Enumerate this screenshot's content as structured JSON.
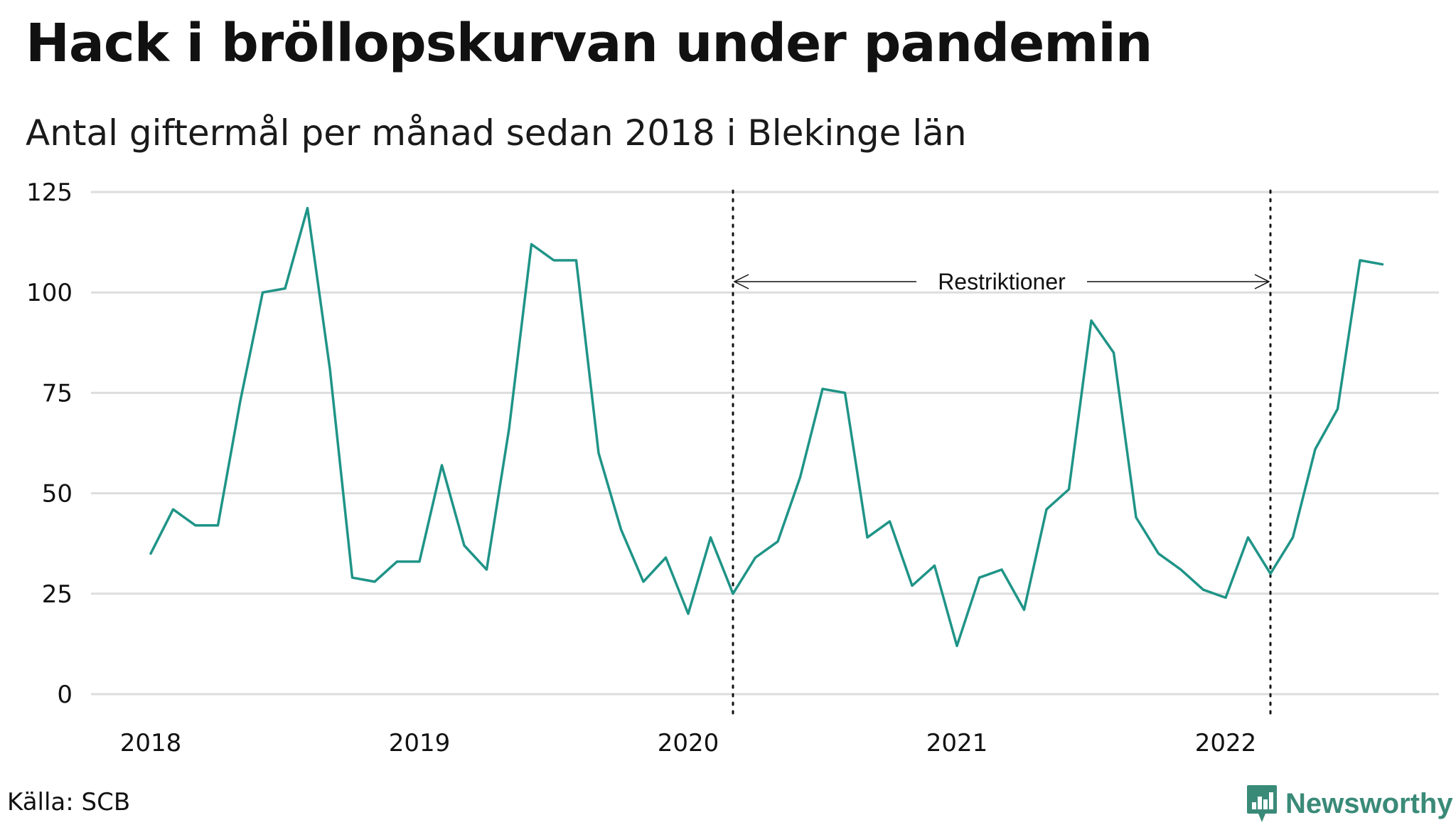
{
  "title": "Hack i bröllopskurvan under pandemin",
  "subtitle": "Antal giftermål per månad sedan 2018 i Blekinge län",
  "source": "Källa: SCB",
  "brand": {
    "name": "Newsworthy",
    "color": "#3a8a78",
    "icon": "newsworthy-logo-icon"
  },
  "colors": {
    "line": "#1f9487",
    "grid": "#dddddd"
  },
  "annotation": {
    "label": "Restriktioner",
    "start": "2020-03",
    "end": "2022-03"
  },
  "chart_data": {
    "type": "line",
    "title": "Hack i bröllopskurvan under pandemin",
    "subtitle": "Antal giftermål per månad sedan 2018 i Blekinge län",
    "xlabel": "",
    "ylabel": "",
    "ylim": [
      0,
      125
    ],
    "yticks": [
      0,
      25,
      50,
      75,
      100,
      125
    ],
    "xticks": [
      "2018",
      "2019",
      "2020",
      "2021",
      "2022"
    ],
    "grid": "horizontal",
    "x": [
      "2018-01",
      "2018-02",
      "2018-03",
      "2018-04",
      "2018-05",
      "2018-06",
      "2018-07",
      "2018-08",
      "2018-09",
      "2018-10",
      "2018-11",
      "2018-12",
      "2019-01",
      "2019-02",
      "2019-03",
      "2019-04",
      "2019-05",
      "2019-06",
      "2019-07",
      "2019-08",
      "2019-09",
      "2019-10",
      "2019-11",
      "2019-12",
      "2020-01",
      "2020-02",
      "2020-03",
      "2020-04",
      "2020-05",
      "2020-06",
      "2020-07",
      "2020-08",
      "2020-09",
      "2020-10",
      "2020-11",
      "2020-12",
      "2021-01",
      "2021-02",
      "2021-03",
      "2021-04",
      "2021-05",
      "2021-06",
      "2021-07",
      "2021-08",
      "2021-09",
      "2021-10",
      "2021-11",
      "2021-12",
      "2022-01",
      "2022-02",
      "2022-03",
      "2022-04",
      "2022-05",
      "2022-06",
      "2022-07",
      "2022-08"
    ],
    "values": [
      35,
      46,
      42,
      42,
      73,
      100,
      101,
      121,
      81,
      29,
      28,
      33,
      33,
      57,
      37,
      31,
      66,
      112,
      108,
      108,
      60,
      41,
      28,
      34,
      20,
      39,
      25,
      34,
      38,
      54,
      76,
      75,
      39,
      43,
      27,
      32,
      12,
      29,
      31,
      21,
      46,
      51,
      93,
      85,
      44,
      35,
      31,
      26,
      24,
      39,
      30,
      39,
      61,
      71,
      108,
      107
    ]
  }
}
